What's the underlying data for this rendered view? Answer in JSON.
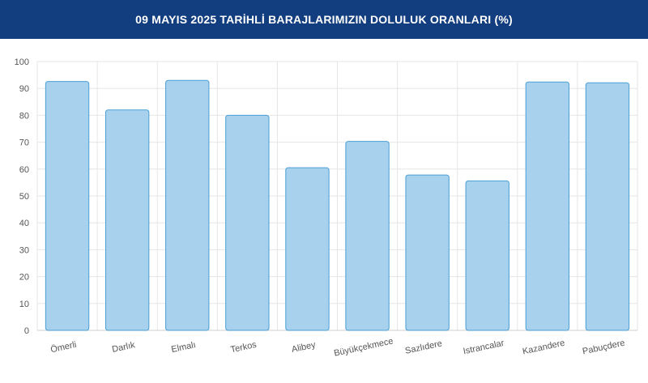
{
  "header": {
    "title": "09 MAYIS 2025 TARİHLİ BARAJLARIMIZIN DOLULUK ORANLARI (%)"
  },
  "colors": {
    "header_bg": "#123d7f",
    "bar_fill": "#a7d1ec",
    "bar_stroke": "#4a9fd5",
    "grid": "#e6e6e6",
    "tick_text": "#555555"
  },
  "chart_data": {
    "type": "bar",
    "title": "09 MAYIS 2025 TARİHLİ BARAJLARIMIZIN DOLULUK ORANLARI (%)",
    "categories": [
      "Ömerli",
      "Darlık",
      "Elmalı",
      "Terkos",
      "Alibey",
      "Büyükçekmece",
      "Sazlıdere",
      "Istrancalar",
      "Kazandere",
      "Pabuçdere"
    ],
    "values": [
      92.6,
      82.0,
      93.0,
      80.0,
      60.5,
      70.3,
      57.8,
      55.6,
      92.4,
      92.1
    ],
    "ylim": [
      0,
      100
    ],
    "yticks": [
      0,
      10,
      20,
      30,
      40,
      50,
      60,
      70,
      80,
      90,
      100
    ],
    "grid": true,
    "legend": "none"
  }
}
